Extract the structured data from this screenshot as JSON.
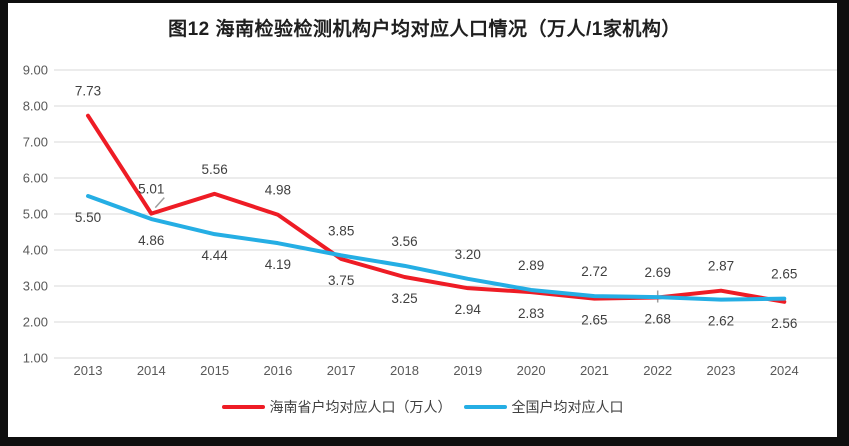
{
  "chart_data": {
    "type": "line",
    "title": "图12  海南检验检测机构户均对应人口情况（万人/1家机构）",
    "categories": [
      "2013",
      "2014",
      "2015",
      "2016",
      "2017",
      "2018",
      "2019",
      "2020",
      "2021",
      "2022",
      "2023",
      "2024"
    ],
    "series": [
      {
        "name": "海南省户均对应人口（万人）",
        "color": "#EE1C25",
        "values": [
          7.73,
          5.01,
          5.56,
          4.98,
          3.75,
          3.25,
          2.94,
          2.83,
          2.65,
          2.68,
          2.87,
          2.56
        ],
        "label_sides": [
          "above",
          "above",
          "above",
          "above",
          "below",
          "below",
          "below",
          "below",
          "below",
          "below",
          "above",
          "below"
        ]
      },
      {
        "name": "全国户均对应人口",
        "color": "#25AEE4",
        "values": [
          5.5,
          4.86,
          4.44,
          4.19,
          3.85,
          3.56,
          3.2,
          2.89,
          2.72,
          2.69,
          2.62,
          2.65
        ],
        "label_sides": [
          "below",
          "below",
          "below",
          "below",
          "above",
          "above",
          "above",
          "above",
          "above",
          "above",
          "below",
          "above"
        ]
      }
    ],
    "ylim": [
      1,
      9
    ],
    "yticks": [
      9,
      8,
      7,
      6,
      5,
      4,
      3,
      2,
      1
    ],
    "ytick_format": "two_decimals",
    "grid": true,
    "data_labels": true,
    "legend_position": "bottom",
    "leader_lines": [
      {
        "series": 0,
        "index": 1,
        "shape": "diagonal"
      },
      {
        "series": 0,
        "index": 9,
        "shape": "vertical"
      }
    ],
    "colors": {
      "grid": "#D9D9D9",
      "axis_text": "#595959",
      "data_label_text": "#404040",
      "leader": "#9E9E9E"
    }
  }
}
